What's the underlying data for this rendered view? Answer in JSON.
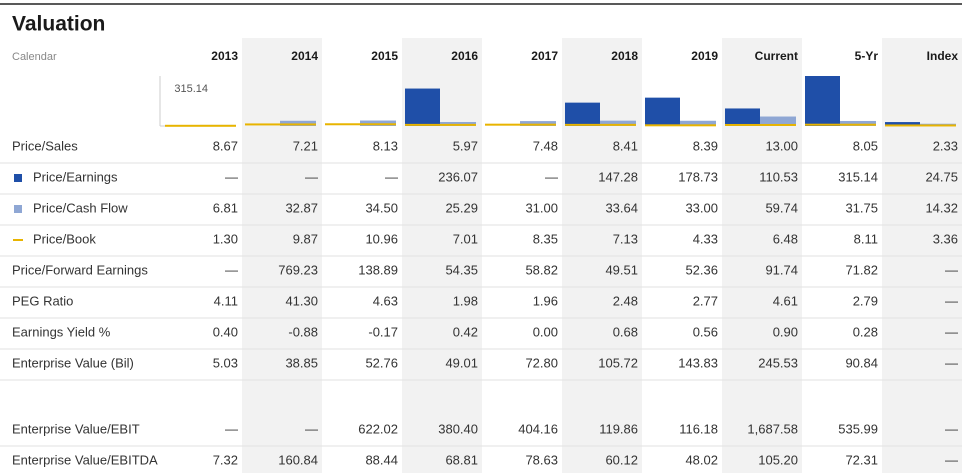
{
  "title": "Valuation",
  "header": {
    "label": "Calendar",
    "columns": [
      "2013",
      "2014",
      "2015",
      "2016",
      "2017",
      "2018",
      "2019",
      "Current",
      "5-Yr",
      "Index"
    ]
  },
  "chart": {
    "scale_max": "315.14",
    "bar_rows": {
      "primary": 1,
      "secondary": 2,
      "line": 3
    }
  },
  "rows": [
    {
      "label": "Price/Sales",
      "cells": [
        "8.67",
        "7.21",
        "8.13",
        "5.97",
        "7.48",
        "8.41",
        "8.39",
        "13.00",
        "8.05",
        "2.33"
      ]
    },
    {
      "label": "Price/Earnings",
      "marker": "square",
      "color": "#1f4fa8",
      "cells": [
        "—",
        "—",
        "—",
        "236.07",
        "—",
        "147.28",
        "178.73",
        "110.53",
        "315.14",
        "24.75"
      ]
    },
    {
      "label": "Price/Cash Flow",
      "marker": "square",
      "color": "#8fa7d4",
      "cells": [
        "6.81",
        "32.87",
        "34.50",
        "25.29",
        "31.00",
        "33.64",
        "33.00",
        "59.74",
        "31.75",
        "14.32"
      ]
    },
    {
      "label": "Price/Book",
      "marker": "dash",
      "color": "#e8b400",
      "cells": [
        "1.30",
        "9.87",
        "10.96",
        "7.01",
        "8.35",
        "7.13",
        "4.33",
        "6.48",
        "8.11",
        "3.36"
      ]
    },
    {
      "label": "Price/Forward Earnings",
      "cells": [
        "—",
        "769.23",
        "138.89",
        "54.35",
        "58.82",
        "49.51",
        "52.36",
        "91.74",
        "71.82",
        "—"
      ]
    },
    {
      "label": "PEG Ratio",
      "cells": [
        "4.11",
        "41.30",
        "4.63",
        "1.98",
        "1.96",
        "2.48",
        "2.77",
        "4.61",
        "2.79",
        "—"
      ]
    },
    {
      "label": "Earnings Yield %",
      "cells": [
        "0.40",
        "-0.88",
        "-0.17",
        "0.42",
        "0.00",
        "0.68",
        "0.56",
        "0.90",
        "0.28",
        "—"
      ]
    },
    {
      "label": "Enterprise Value (Bil)",
      "cells": [
        "5.03",
        "38.85",
        "52.76",
        "49.01",
        "72.80",
        "105.72",
        "143.83",
        "245.53",
        "90.84",
        "—"
      ]
    },
    {
      "label": "Enterprise Value/EBIT",
      "cells": [
        "—",
        "—",
        "622.02",
        "380.40",
        "404.16",
        "119.86",
        "116.18",
        "1,687.58",
        "535.99",
        "—"
      ]
    },
    {
      "label": "Enterprise Value/EBITDA",
      "cells": [
        "7.32",
        "160.84",
        "88.44",
        "68.81",
        "78.63",
        "60.12",
        "48.02",
        "105.20",
        "72.31",
        "—"
      ]
    }
  ]
}
